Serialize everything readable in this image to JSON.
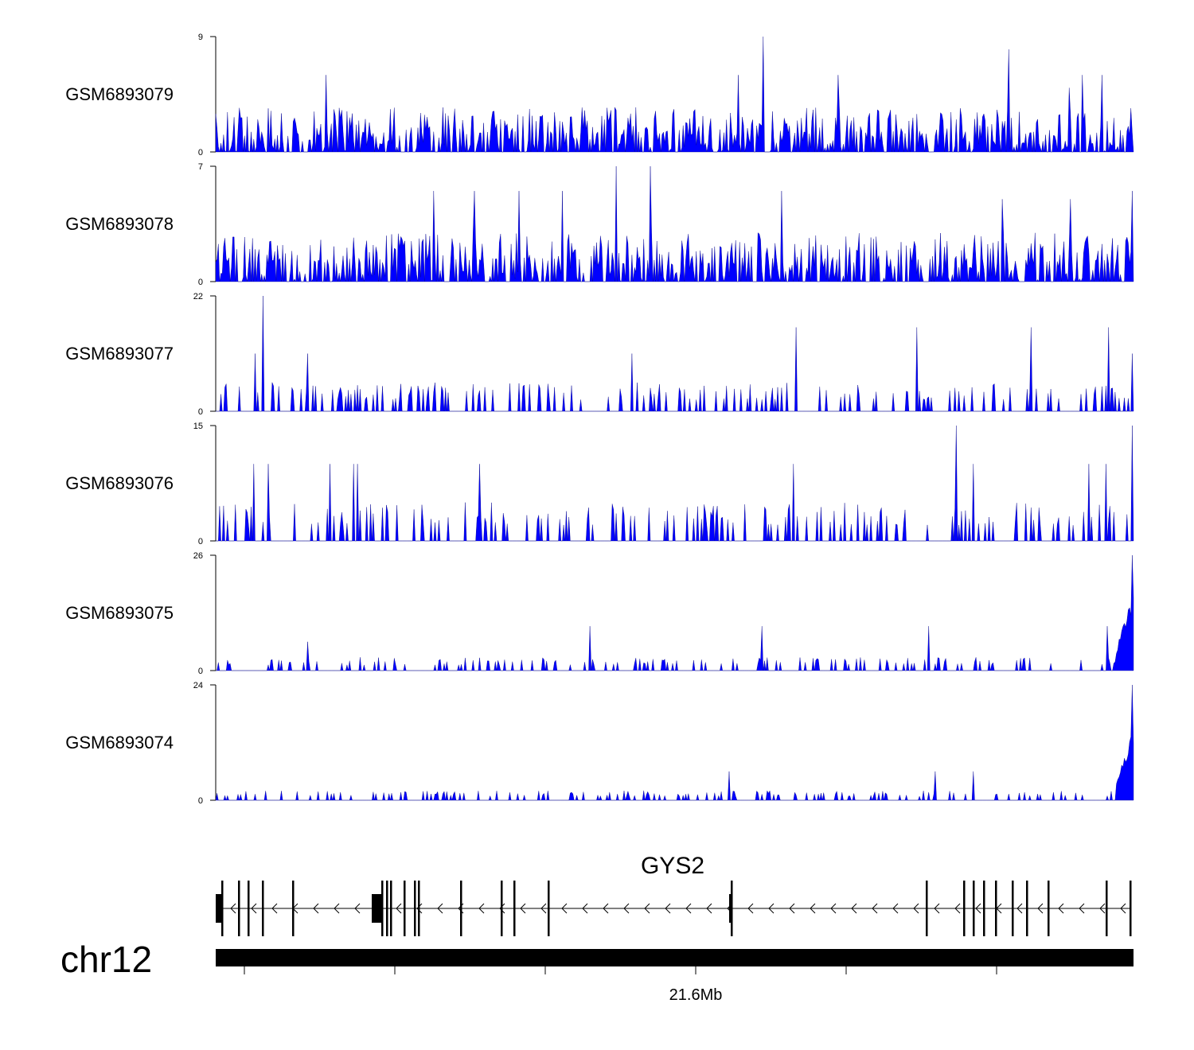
{
  "chart_data": {
    "type": "area",
    "chromosome": "chr12",
    "color": "#0000ff",
    "tracks": [
      {
        "name": "GSM6893079",
        "ymax": 9,
        "ymin": 0,
        "peaks": [
          [
            0.12,
            6
          ],
          [
            0.596,
            9
          ],
          [
            0.57,
            6
          ],
          [
            0.678,
            6
          ],
          [
            0.864,
            8
          ],
          [
            0.944,
            6
          ],
          [
            0.965,
            6
          ],
          [
            0.93,
            5
          ]
        ],
        "base": 1.0,
        "spike": 3.5
      },
      {
        "name": "GSM6893078",
        "ymax": 7,
        "ymin": 0,
        "peaks": [
          [
            0.437,
            7
          ],
          [
            0.474,
            7
          ],
          [
            0.238,
            5.5
          ],
          [
            0.282,
            5.5
          ],
          [
            0.33,
            5.5
          ],
          [
            0.377,
            5.5
          ],
          [
            0.617,
            5.5
          ],
          [
            0.932,
            5
          ],
          [
            0.998,
            5.5
          ],
          [
            0.857,
            5
          ]
        ],
        "base": 0.9,
        "spike": 3.0
      },
      {
        "name": "GSM6893077",
        "ymax": 22,
        "ymin": 0,
        "peaks": [
          [
            0.052,
            22
          ],
          [
            0.043,
            11
          ],
          [
            0.1,
            11
          ],
          [
            0.454,
            11
          ],
          [
            0.633,
            16
          ],
          [
            0.764,
            16
          ],
          [
            0.889,
            16
          ],
          [
            0.973,
            16
          ],
          [
            0.998,
            11
          ]
        ],
        "base": 0,
        "spike": 5.5
      },
      {
        "name": "GSM6893076",
        "ymax": 15,
        "ymin": 0,
        "peaks": [
          [
            0.807,
            15
          ],
          [
            0.999,
            15
          ],
          [
            0.826,
            10
          ],
          [
            0.629,
            10
          ],
          [
            0.041,
            10
          ],
          [
            0.057,
            10
          ],
          [
            0.124,
            10
          ],
          [
            0.15,
            10
          ],
          [
            0.155,
            10
          ],
          [
            0.287,
            10
          ],
          [
            0.952,
            10
          ],
          [
            0.97,
            10
          ]
        ],
        "base": 0,
        "spike": 5.0
      },
      {
        "name": "GSM6893075",
        "ymax": 26,
        "ymin": 0,
        "peaks": [
          [
            0.998,
            26
          ],
          [
            0.1,
            6.5
          ],
          [
            0.408,
            10
          ],
          [
            0.595,
            10
          ],
          [
            0.777,
            10
          ],
          [
            0.972,
            10
          ]
        ],
        "base": 0,
        "spike": 3.0,
        "tail": 18
      },
      {
        "name": "GSM6893074",
        "ymax": 24,
        "ymin": 0,
        "peaks": [
          [
            0.998,
            24
          ],
          [
            0.56,
            6
          ],
          [
            0.784,
            6
          ],
          [
            0.825,
            6
          ]
        ],
        "base": 0,
        "spike": 2.0,
        "tail": 14
      }
    ],
    "gene": {
      "name": "GYS2",
      "strand": "-"
    },
    "axis": {
      "tick_label": "21.6Mb"
    }
  }
}
